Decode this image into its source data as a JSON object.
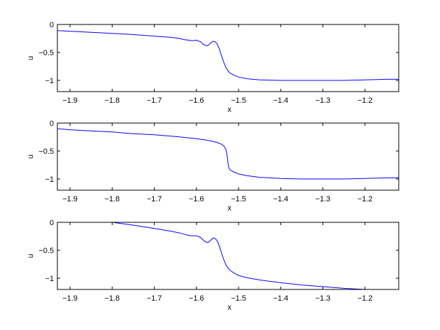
{
  "chart_data": [
    {
      "type": "line",
      "xlabel": "x",
      "ylabel": "u",
      "xlim": [
        -1.93,
        -1.12
      ],
      "ylim": [
        -1.2,
        0
      ],
      "xticks": [
        -1.9,
        -1.8,
        -1.7,
        -1.6,
        -1.5,
        -1.4,
        -1.3,
        -1.2
      ],
      "xtick_labels": [
        "−1.9",
        "−1.8",
        "−1.7",
        "−1.6",
        "−1.5",
        "−1.4",
        "−1.3",
        "−1.2"
      ],
      "yticks": [
        0,
        -0.5,
        -1
      ],
      "ytick_labels": [
        "0",
        "−0.5",
        "−1"
      ],
      "color": "#0000ff",
      "series": [
        {
          "x": [
            -1.93,
            -1.9,
            -1.85,
            -1.8,
            -1.75,
            -1.7,
            -1.66,
            -1.64,
            -1.63,
            -1.62,
            -1.61,
            -1.6,
            -1.59,
            -1.585,
            -1.58,
            -1.575,
            -1.57,
            -1.565,
            -1.56,
            -1.555,
            -1.55,
            -1.545,
            -1.54,
            -1.535,
            -1.53,
            -1.525,
            -1.52,
            -1.51,
            -1.5,
            -1.48,
            -1.45,
            -1.4,
            -1.35,
            -1.3,
            -1.25,
            -1.2,
            -1.15,
            -1.12
          ],
          "y": [
            -0.11,
            -0.12,
            -0.14,
            -0.16,
            -0.18,
            -0.21,
            -0.23,
            -0.25,
            -0.27,
            -0.28,
            -0.29,
            -0.28,
            -0.31,
            -0.35,
            -0.37,
            -0.38,
            -0.36,
            -0.32,
            -0.3,
            -0.31,
            -0.36,
            -0.45,
            -0.57,
            -0.68,
            -0.77,
            -0.83,
            -0.87,
            -0.91,
            -0.94,
            -0.97,
            -0.99,
            -1.0,
            -1.0,
            -1.0,
            -1.0,
            -0.99,
            -0.98,
            -0.98
          ]
        }
      ]
    },
    {
      "type": "line",
      "xlabel": "x",
      "ylabel": "u",
      "xlim": [
        -1.93,
        -1.12
      ],
      "ylim": [
        -1.2,
        0
      ],
      "xticks": [
        -1.9,
        -1.8,
        -1.7,
        -1.6,
        -1.5,
        -1.4,
        -1.3,
        -1.2
      ],
      "xtick_labels": [
        "−1.9",
        "−1.8",
        "−1.7",
        "−1.6",
        "−1.5",
        "−1.4",
        "−1.3",
        "−1.2"
      ],
      "yticks": [
        0,
        -0.5,
        -1
      ],
      "ytick_labels": [
        "0",
        "−0.5",
        "−1"
      ],
      "color": "#0000ff",
      "series": [
        {
          "x": [
            -1.93,
            -1.9,
            -1.85,
            -1.8,
            -1.75,
            -1.7,
            -1.65,
            -1.6,
            -1.58,
            -1.56,
            -1.55,
            -1.54,
            -1.535,
            -1.53,
            -1.527,
            -1.525,
            -1.523,
            -1.52,
            -1.515,
            -1.51,
            -1.5,
            -1.48,
            -1.45,
            -1.4,
            -1.35,
            -1.3,
            -1.25,
            -1.2,
            -1.15,
            -1.12
          ],
          "y": [
            -0.1,
            -0.12,
            -0.14,
            -0.16,
            -0.19,
            -0.21,
            -0.24,
            -0.28,
            -0.3,
            -0.33,
            -0.35,
            -0.38,
            -0.41,
            -0.47,
            -0.6,
            -0.72,
            -0.8,
            -0.84,
            -0.86,
            -0.88,
            -0.91,
            -0.94,
            -0.97,
            -0.99,
            -1.0,
            -1.0,
            -1.0,
            -0.99,
            -0.98,
            -0.98
          ]
        }
      ]
    },
    {
      "type": "line",
      "xlabel": "x",
      "ylabel": "u",
      "xlim": [
        -1.93,
        -1.12
      ],
      "ylim": [
        -1.2,
        0
      ],
      "xticks": [
        -1.9,
        -1.8,
        -1.7,
        -1.6,
        -1.5,
        -1.4,
        -1.3,
        -1.2
      ],
      "xtick_labels": [
        "−1.9",
        "−1.8",
        "−1.7",
        "−1.6",
        "−1.5",
        "−1.4",
        "−1.3",
        "−1.2"
      ],
      "yticks": [
        0,
        -0.5,
        -1
      ],
      "ytick_labels": [
        "0",
        "−0.5",
        "−1"
      ],
      "color": "#0000ff",
      "series": [
        {
          "x": [
            -1.8,
            -1.75,
            -1.7,
            -1.66,
            -1.64,
            -1.63,
            -1.62,
            -1.61,
            -1.6,
            -1.59,
            -1.585,
            -1.58,
            -1.575,
            -1.57,
            -1.565,
            -1.56,
            -1.555,
            -1.55,
            -1.545,
            -1.54,
            -1.535,
            -1.53,
            -1.525,
            -1.52,
            -1.51,
            -1.5,
            -1.48,
            -1.45,
            -1.4,
            -1.35,
            -1.3,
            -1.25,
            -1.2,
            -1.15
          ],
          "y": [
            0.0,
            -0.05,
            -0.11,
            -0.16,
            -0.19,
            -0.21,
            -0.23,
            -0.24,
            -0.24,
            -0.27,
            -0.31,
            -0.34,
            -0.36,
            -0.35,
            -0.31,
            -0.28,
            -0.29,
            -0.34,
            -0.44,
            -0.56,
            -0.67,
            -0.76,
            -0.82,
            -0.86,
            -0.91,
            -0.95,
            -0.99,
            -1.03,
            -1.08,
            -1.12,
            -1.15,
            -1.18,
            -1.2,
            -1.22
          ]
        }
      ]
    }
  ]
}
